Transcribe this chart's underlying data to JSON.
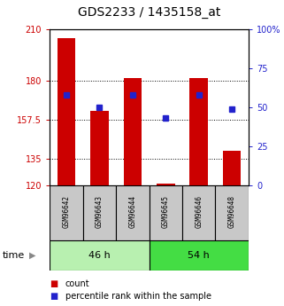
{
  "title": "GDS2233 / 1435158_at",
  "samples": [
    "GSM96642",
    "GSM96643",
    "GSM96644",
    "GSM96645",
    "GSM96646",
    "GSM96648"
  ],
  "count_values": [
    205,
    163,
    182,
    121,
    182,
    140
  ],
  "percentile_values": [
    58,
    50,
    58,
    43,
    58,
    49
  ],
  "count_baseline": 120,
  "ylim_left": [
    120,
    210
  ],
  "ylim_right": [
    0,
    100
  ],
  "yticks_left": [
    120,
    135,
    157.5,
    180,
    210
  ],
  "yticks_right": [
    0,
    25,
    50,
    75,
    100
  ],
  "ytick_labels_left": [
    "120",
    "135",
    "157.5",
    "180",
    "210"
  ],
  "ytick_labels_right": [
    "0",
    "25",
    "50",
    "75",
    "100%"
  ],
  "groups": [
    {
      "label": "46 h",
      "n": 3,
      "color": "#b8f0b0"
    },
    {
      "label": "54 h",
      "n": 3,
      "color": "#44dd44"
    }
  ],
  "bar_color": "#cc0000",
  "dot_color": "#2222cc",
  "bar_width": 0.55,
  "grid_yticks": [
    135,
    157.5,
    180
  ],
  "bg_color": "#ffffff",
  "time_label": "time",
  "legend_count_label": "count",
  "legend_percentile_label": "percentile rank within the sample",
  "title_fontsize": 10,
  "tick_fontsize": 7,
  "sample_fontsize": 5.5,
  "group_fontsize": 8,
  "legend_fontsize": 7
}
